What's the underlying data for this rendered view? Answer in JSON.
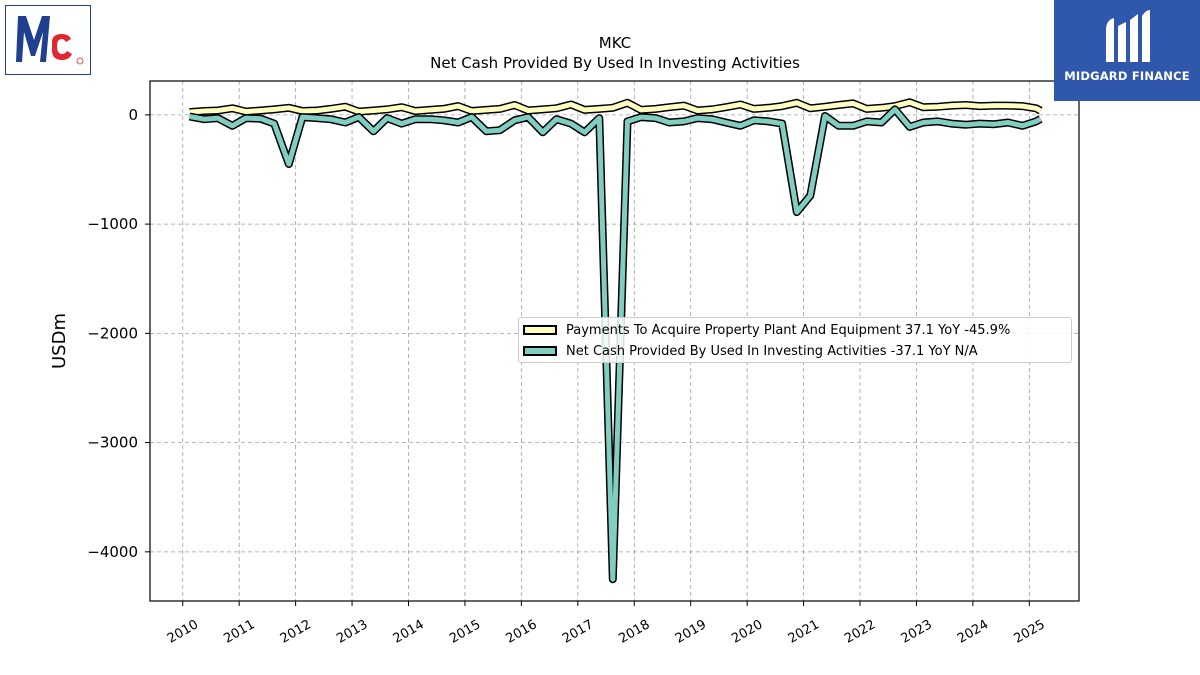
{
  "brand": {
    "left_logo": "McCormick Mc logo",
    "right_logo_icon": "midgard-m-icon",
    "right_logo_text": "MIDGARD FINANCE",
    "right_logo_bg": "#2f58ad"
  },
  "chart_data": {
    "type": "line",
    "title": "MKC",
    "subtitle": "Net Cash Provided By Used In Investing Activities",
    "ylabel": "USDm",
    "xlabel": "",
    "ylim": [
      -4450,
      310
    ],
    "xlim": [
      2009.42,
      2025.88
    ],
    "yticks": [
      0,
      -1000,
      -2000,
      -3000,
      -4000
    ],
    "ytick_labels": [
      "0",
      "−1000",
      "−2000",
      "−3000",
      "−4000"
    ],
    "xticks": [
      2010,
      2011,
      2012,
      2013,
      2014,
      2015,
      2016,
      2017,
      2018,
      2019,
      2020,
      2021,
      2022,
      2023,
      2024,
      2025
    ],
    "xtick_labels": [
      "2010",
      "2011",
      "2012",
      "2013",
      "2014",
      "2015",
      "2016",
      "2017",
      "2018",
      "2019",
      "2020",
      "2021",
      "2022",
      "2023",
      "2024",
      "2025"
    ],
    "grid": true,
    "legend_position": "center-right",
    "series": [
      {
        "name": "Payments To Acquire Property Plant And Equipment",
        "legend_label": "Payments To Acquire Property Plant And Equipment  37.1 YoY -45.9%",
        "color": "#ffffbf",
        "x": [
          2010.12,
          2010.38,
          2010.62,
          2010.88,
          2011.12,
          2011.38,
          2011.62,
          2011.88,
          2012.12,
          2012.38,
          2012.62,
          2012.88,
          2013.12,
          2013.38,
          2013.62,
          2013.88,
          2014.12,
          2014.38,
          2014.62,
          2014.88,
          2015.12,
          2015.38,
          2015.62,
          2015.88,
          2016.12,
          2016.38,
          2016.62,
          2016.88,
          2017.12,
          2017.38,
          2017.62,
          2017.88,
          2018.12,
          2018.38,
          2018.62,
          2018.88,
          2019.12,
          2019.38,
          2019.62,
          2019.88,
          2020.12,
          2020.38,
          2020.62,
          2020.88,
          2021.12,
          2021.38,
          2021.62,
          2021.88,
          2022.12,
          2022.38,
          2022.62,
          2022.88,
          2023.12,
          2023.38,
          2023.62,
          2023.88,
          2024.12,
          2024.38,
          2024.62,
          2024.88,
          2025.12,
          2025.2
        ],
        "y": [
          25,
          35,
          40,
          60,
          30,
          40,
          50,
          65,
          35,
          40,
          55,
          75,
          30,
          40,
          50,
          70,
          35,
          45,
          55,
          80,
          35,
          45,
          55,
          90,
          40,
          50,
          60,
          95,
          45,
          55,
          65,
          110,
          45,
          55,
          70,
          85,
          40,
          50,
          70,
          95,
          55,
          65,
          80,
          110,
          60,
          75,
          90,
          105,
          55,
          65,
          80,
          115,
          70,
          75,
          85,
          90,
          80,
          85,
          85,
          80,
          60,
          37
        ]
      },
      {
        "name": "Net Cash Provided By Used In Investing Activities",
        "legend_label": "Net Cash Provided By Used In Investing Activities  -37.1 YoY N/A",
        "color": "#80cdc1",
        "x": [
          2010.12,
          2010.38,
          2010.62,
          2010.88,
          2011.12,
          2011.38,
          2011.62,
          2011.88,
          2012.12,
          2012.38,
          2012.62,
          2012.88,
          2013.12,
          2013.38,
          2013.62,
          2013.88,
          2014.12,
          2014.38,
          2014.62,
          2014.88,
          2015.12,
          2015.38,
          2015.62,
          2015.88,
          2016.12,
          2016.38,
          2016.62,
          2016.88,
          2017.12,
          2017.38,
          2017.62,
          2017.88,
          2018.12,
          2018.38,
          2018.62,
          2018.88,
          2019.12,
          2019.38,
          2019.62,
          2019.88,
          2020.12,
          2020.38,
          2020.62,
          2020.88,
          2021.12,
          2021.38,
          2021.62,
          2021.88,
          2022.12,
          2022.38,
          2022.62,
          2022.88,
          2023.12,
          2023.38,
          2023.62,
          2023.88,
          2024.12,
          2024.38,
          2024.62,
          2024.88,
          2025.12,
          2025.2
        ],
        "y": [
          -15,
          -40,
          -30,
          -100,
          -30,
          -35,
          -80,
          -450,
          -20,
          -30,
          -40,
          -70,
          -20,
          -150,
          -30,
          -80,
          -40,
          -40,
          -50,
          -70,
          -20,
          -150,
          -140,
          -50,
          -20,
          -160,
          -40,
          -80,
          -160,
          -30,
          -4250,
          -60,
          -20,
          -30,
          -70,
          -60,
          -30,
          -40,
          -70,
          -100,
          -50,
          -60,
          -80,
          -890,
          -740,
          -10,
          -100,
          -100,
          -60,
          -70,
          50,
          -110,
          -70,
          -60,
          -80,
          -90,
          -80,
          -85,
          -70,
          -100,
          -60,
          -37
        ]
      }
    ]
  }
}
